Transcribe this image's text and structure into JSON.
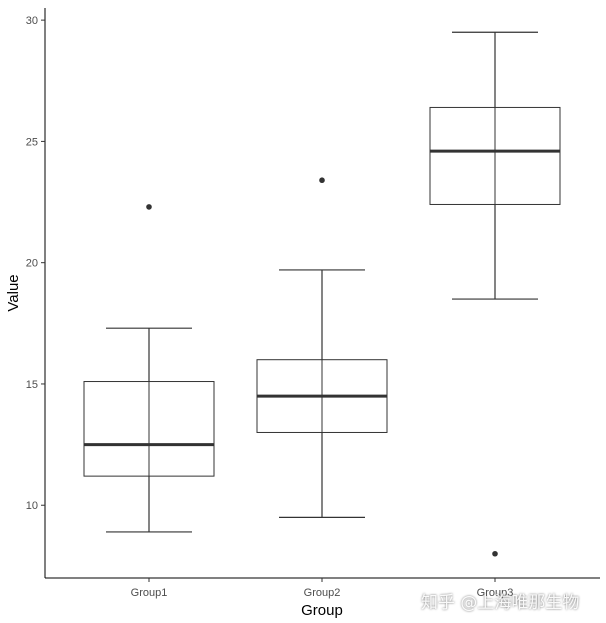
{
  "chart_data": {
    "type": "box",
    "xlabel": "Group",
    "ylabel": "Value",
    "ylim": [
      7,
      30.5
    ],
    "yticks": [
      10,
      15,
      20,
      25,
      30
    ],
    "categories": [
      "Group1",
      "Group2",
      "Group3"
    ],
    "boxes": [
      {
        "category": "Group1",
        "whisker_low": 8.9,
        "q1": 11.2,
        "median": 12.5,
        "q3": 15.1,
        "whisker_high": 17.3,
        "outliers": [
          22.3
        ]
      },
      {
        "category": "Group2",
        "whisker_low": 9.5,
        "q1": 13.0,
        "median": 14.5,
        "q3": 16.0,
        "whisker_high": 19.7,
        "outliers": [
          23.4
        ]
      },
      {
        "category": "Group3",
        "whisker_low": 18.5,
        "q1": 22.4,
        "median": 24.6,
        "q3": 26.4,
        "whisker_high": 29.5,
        "outliers": [
          8.0
        ]
      }
    ],
    "grid": false,
    "colors": {
      "box_line": "#333333",
      "point": "#333333"
    }
  },
  "watermark": "知乎 @上海唯那生物"
}
